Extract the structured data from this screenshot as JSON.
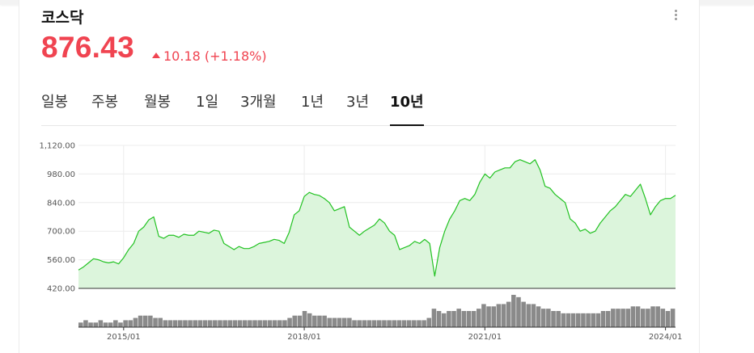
{
  "header": {
    "title": "코스닥",
    "price": "876.43",
    "change": "10.18 (+1.18%)"
  },
  "tabs": [
    "일봉",
    "주봉",
    "월봉",
    "1일",
    "3개월",
    "1년",
    "3년",
    "10년"
  ],
  "active_tab": "10년",
  "colors": {
    "price_up": "#f04451",
    "line": "#22c222",
    "fill": "#dcf5dc",
    "volume": "#8a8a8a"
  },
  "chart_data": {
    "type": "area",
    "x_ticks": [
      "2015/01",
      "2018/01",
      "2021/01",
      "2024/01"
    ],
    "y_ticks": [
      "1,120.00",
      "980.00",
      "840.00",
      "700.00",
      "560.00",
      "420.00"
    ],
    "ylim": [
      420,
      1120
    ],
    "xlim": [
      "2014/04",
      "2024/03"
    ],
    "grid": true,
    "series": [
      {
        "x": [
          "2014/04",
          "2014/05",
          "2014/06",
          "2014/07",
          "2014/08",
          "2014/09",
          "2014/10",
          "2014/11",
          "2014/12",
          "2015/01",
          "2015/02",
          "2015/03",
          "2015/04",
          "2015/05",
          "2015/06",
          "2015/07",
          "2015/08",
          "2015/09",
          "2015/10",
          "2015/11",
          "2015/12",
          "2016/01",
          "2016/02",
          "2016/03",
          "2016/04",
          "2016/05",
          "2016/06",
          "2016/07",
          "2016/08",
          "2016/09",
          "2016/10",
          "2016/11",
          "2016/12",
          "2017/01",
          "2017/02",
          "2017/03",
          "2017/04",
          "2017/05",
          "2017/06",
          "2017/07",
          "2017/08",
          "2017/09",
          "2017/10",
          "2017/11",
          "2017/12",
          "2018/01",
          "2018/02",
          "2018/03",
          "2018/04",
          "2018/05",
          "2018/06",
          "2018/07",
          "2018/08",
          "2018/09",
          "2018/10",
          "2018/11",
          "2018/12",
          "2019/01",
          "2019/02",
          "2019/03",
          "2019/04",
          "2019/05",
          "2019/06",
          "2019/07",
          "2019/08",
          "2019/09",
          "2019/10",
          "2019/11",
          "2019/12",
          "2020/01",
          "2020/02",
          "2020/03",
          "2020/04",
          "2020/05",
          "2020/06",
          "2020/07",
          "2020/08",
          "2020/09",
          "2020/10",
          "2020/11",
          "2020/12",
          "2021/01",
          "2021/02",
          "2021/03",
          "2021/04",
          "2021/05",
          "2021/06",
          "2021/07",
          "2021/08",
          "2021/09",
          "2021/10",
          "2021/11",
          "2021/12",
          "2022/01",
          "2022/02",
          "2022/03",
          "2022/04",
          "2022/05",
          "2022/06",
          "2022/07",
          "2022/08",
          "2022/09",
          "2022/10",
          "2022/11",
          "2022/12",
          "2023/01",
          "2023/02",
          "2023/03",
          "2023/04",
          "2023/05",
          "2023/06",
          "2023/07",
          "2023/08",
          "2023/09",
          "2023/10",
          "2023/11",
          "2023/12",
          "2024/01",
          "2024/02",
          "2024/03"
        ],
        "y": [
          510,
          525,
          545,
          565,
          560,
          550,
          545,
          550,
          540,
          570,
          610,
          640,
          700,
          720,
          755,
          770,
          675,
          665,
          680,
          680,
          670,
          685,
          680,
          680,
          700,
          695,
          690,
          705,
          700,
          640,
          625,
          610,
          625,
          615,
          615,
          625,
          640,
          645,
          650,
          660,
          655,
          640,
          695,
          780,
          800,
          870,
          890,
          880,
          875,
          860,
          840,
          800,
          810,
          820,
          720,
          700,
          680,
          700,
          715,
          730,
          760,
          740,
          700,
          680,
          610,
          620,
          630,
          650,
          640,
          660,
          640,
          480,
          620,
          700,
          760,
          800,
          850,
          860,
          850,
          880,
          940,
          980,
          960,
          990,
          1000,
          1010,
          1010,
          1040,
          1050,
          1040,
          1030,
          1050,
          1000,
          920,
          910,
          880,
          860,
          840,
          760,
          740,
          700,
          710,
          690,
          700,
          740,
          770,
          800,
          820,
          850,
          880,
          870,
          900,
          930,
          860,
          780,
          820,
          850,
          860,
          860,
          876
        ]
      }
    ],
    "volume": {
      "x_range": [
        "2014/04",
        "2024/03"
      ],
      "values": [
        2,
        3,
        2,
        2,
        3,
        2,
        2,
        3,
        2,
        3,
        3,
        4,
        5,
        5,
        5,
        4,
        4,
        3,
        3,
        3,
        3,
        3,
        3,
        3,
        3,
        3,
        3,
        3,
        3,
        3,
        3,
        3,
        3,
        3,
        3,
        3,
        3,
        3,
        3,
        3,
        3,
        3,
        4,
        5,
        5,
        7,
        6,
        5,
        5,
        5,
        4,
        4,
        4,
        4,
        4,
        3,
        3,
        3,
        3,
        3,
        3,
        3,
        3,
        3,
        3,
        3,
        3,
        3,
        3,
        3,
        4,
        8,
        7,
        6,
        7,
        7,
        8,
        7,
        7,
        7,
        8,
        10,
        9,
        9,
        10,
        10,
        11,
        14,
        13,
        11,
        10,
        10,
        9,
        8,
        8,
        7,
        7,
        6,
        6,
        6,
        6,
        6,
        6,
        6,
        6,
        7,
        7,
        8,
        8,
        8,
        8,
        9,
        9,
        8,
        8,
        9,
        9,
        8,
        7,
        8
      ]
    }
  }
}
